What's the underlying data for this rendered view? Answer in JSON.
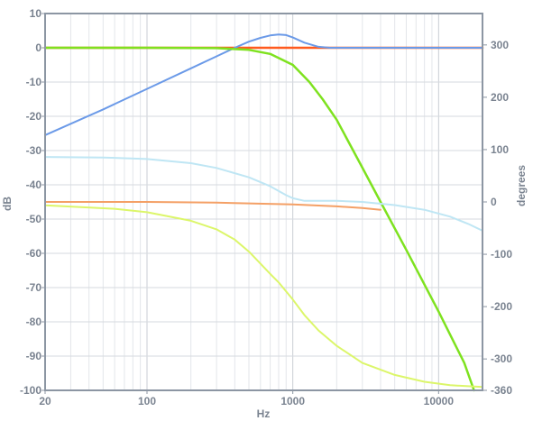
{
  "chart_data": {
    "type": "line",
    "title": "",
    "xlabel": "Hz",
    "ylabel": "dB",
    "y2label": "degrees",
    "xscale": "log",
    "xlim": [
      20,
      20000
    ],
    "ylim": [
      -100,
      10
    ],
    "y2lim": [
      -360,
      360
    ],
    "grid": true,
    "x_ticks": [
      20,
      100,
      1000,
      10000
    ],
    "x_tick_labels": [
      "20",
      "100",
      "1000",
      "10000"
    ],
    "y_ticks": [
      10,
      0,
      -10,
      -20,
      -30,
      -40,
      -50,
      -60,
      -70,
      -80,
      -90,
      -100
    ],
    "y_tick_labels": [
      "10",
      "0",
      "-10",
      "-20",
      "-30",
      "-40",
      "-50",
      "-60",
      "-70",
      "-80",
      "-90",
      "-100"
    ],
    "y2_ticks": [
      300,
      200,
      100,
      0,
      -100,
      -200,
      -300,
      -360
    ],
    "y2_tick_labels": [
      "300",
      "200",
      "100",
      "0",
      "-100",
      "-200",
      "-300",
      "-360"
    ],
    "series": [
      {
        "color": "#ff5a1e",
        "width": 2.5,
        "axis": "left",
        "x": [
          20,
          100,
          1000,
          1600,
          2000,
          20000
        ],
        "y": [
          0,
          0,
          0,
          0,
          0,
          0
        ]
      },
      {
        "color": "#6b9ae8",
        "width": 2,
        "axis": "left",
        "x": [
          20,
          50,
          100,
          200,
          300,
          400,
          500,
          600,
          700,
          800,
          900,
          1000,
          1200,
          1500,
          1800,
          2000,
          3000,
          20000
        ],
        "y": [
          -25.5,
          -18,
          -12,
          -6,
          -2.5,
          0,
          1.8,
          2.9,
          3.6,
          3.9,
          3.7,
          3.0,
          1.5,
          0.3,
          0,
          0,
          0,
          0
        ]
      },
      {
        "color": "#7ee21f",
        "width": 2.5,
        "axis": "left",
        "x": [
          20,
          100,
          300,
          500,
          700,
          1000,
          1300,
          1600,
          2000,
          3000,
          4000,
          6000,
          10000,
          15000,
          17500
        ],
        "y": [
          0,
          0,
          -0.1,
          -0.6,
          -1.8,
          -5,
          -10,
          -15,
          -21,
          -35,
          -45,
          -59,
          -77,
          -92,
          -100
        ]
      },
      {
        "color": "#bfe6f4",
        "width": 2,
        "axis": "right",
        "x": [
          20,
          50,
          100,
          200,
          300,
          500,
          700,
          900,
          1000,
          1200,
          2000,
          3000,
          5000,
          8000,
          12000,
          16000,
          20000
        ],
        "y": [
          86,
          85,
          82,
          74,
          65,
          47,
          30,
          13,
          7,
          2,
          2,
          0,
          -6,
          -15,
          -28,
          -42,
          -55
        ]
      },
      {
        "color": "#f4a066",
        "width": 2,
        "axis": "left",
        "x": [
          20,
          100,
          300,
          1000,
          2000,
          3000,
          4000
        ],
        "y": [
          -45,
          -45,
          -45.2,
          -45.7,
          -46.3,
          -46.8,
          -47.3
        ]
      },
      {
        "color": "#dcf66a",
        "width": 2,
        "axis": "left",
        "x": [
          20,
          60,
          100,
          200,
          300,
          400,
          500,
          600,
          700,
          800,
          1000,
          1200,
          1500,
          2000,
          3000,
          5000,
          8000,
          12000,
          20000
        ],
        "y": [
          -46,
          -47,
          -48,
          -50.5,
          -53,
          -56,
          -59.5,
          -63,
          -66,
          -68.5,
          -73.5,
          -78,
          -82.5,
          -87,
          -92,
          -95.5,
          -97.5,
          -98.5,
          -99
        ]
      }
    ]
  }
}
